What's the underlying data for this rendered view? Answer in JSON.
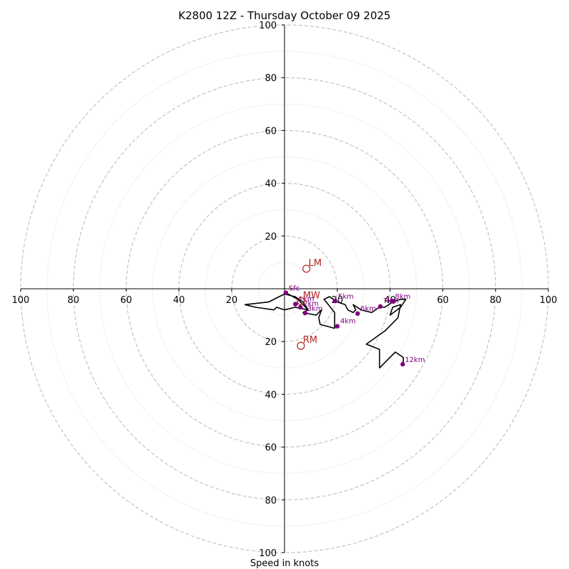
{
  "chart_data": {
    "type": "hodograph",
    "title": "K2800 12Z - Thursday October 09 2025",
    "xlabel": "Speed in knots",
    "units": "knots",
    "range": [
      -100,
      100
    ],
    "ring_major": [
      20,
      40,
      60,
      80,
      100
    ],
    "ring_minor": [
      10,
      30,
      50,
      70,
      90
    ],
    "tick_labels": {
      "x_left": [
        "100",
        "80",
        "60",
        "40",
        "20"
      ],
      "x_right": [
        "20",
        "40",
        "60",
        "80",
        "100"
      ],
      "y_top": [
        "100",
        "80",
        "60",
        "40",
        "20"
      ],
      "y_bottom": [
        "20",
        "40",
        "60",
        "80",
        "100"
      ]
    },
    "ticks": {
      "x_left": [
        -100,
        -80,
        -60,
        -40,
        -20
      ],
      "x_right": [
        20,
        40,
        60,
        80,
        100
      ],
      "y_top": [
        100,
        80,
        60,
        40,
        20
      ],
      "y_bottom": [
        -20,
        -40,
        -60,
        -80,
        -100
      ]
    },
    "trace": [
      [
        0.5,
        -1.5
      ],
      [
        5,
        -4
      ],
      [
        7,
        -6
      ],
      [
        9,
        -8
      ],
      [
        4,
        -7
      ],
      [
        0,
        -8
      ],
      [
        -3,
        -7
      ],
      [
        -4,
        -8
      ],
      [
        -11,
        -7
      ],
      [
        -15,
        -6
      ],
      [
        -6,
        -5
      ],
      [
        0,
        -2
      ],
      [
        4,
        -3
      ],
      [
        7,
        -5
      ],
      [
        9,
        -8
      ],
      [
        7,
        -9
      ],
      [
        12,
        -10
      ],
      [
        14,
        -8
      ],
      [
        13,
        -11
      ],
      [
        13.5,
        -13.5
      ],
      [
        19,
        -15
      ],
      [
        19,
        -9
      ],
      [
        15,
        -4
      ],
      [
        17,
        -3
      ],
      [
        20,
        -5
      ],
      [
        23,
        -6
      ],
      [
        24,
        -8
      ],
      [
        26,
        -9
      ],
      [
        27,
        -8
      ],
      [
        26,
        -6
      ],
      [
        29,
        -8
      ],
      [
        33,
        -9
      ],
      [
        36,
        -7
      ],
      [
        38,
        -7
      ],
      [
        41,
        -5
      ],
      [
        44,
        -4
      ],
      [
        46,
        -4
      ],
      [
        44,
        -7
      ],
      [
        40,
        -10
      ],
      [
        41,
        -7
      ],
      [
        44,
        -6
      ],
      [
        43,
        -11
      ],
      [
        38,
        -16
      ],
      [
        31,
        -21
      ],
      [
        36,
        -23
      ],
      [
        36,
        -30
      ],
      [
        42,
        -24
      ],
      [
        45,
        -26
      ],
      [
        45,
        -28.5
      ]
    ],
    "height_labels": [
      {
        "label": "Sfc",
        "u": 0.5,
        "v": -1.5,
        "dx": 4,
        "dy": -3
      },
      {
        "label": "1km",
        "u": 4.2,
        "v": -5.8,
        "dx": 4,
        "dy": -4
      },
      {
        "label": "2km",
        "u": 6,
        "v": -7,
        "dx": 4,
        "dy": -2
      },
      {
        "label": "3km",
        "u": 7.8,
        "v": -9.2,
        "dx": 3,
        "dy": -3
      },
      {
        "label": "4km",
        "u": 20,
        "v": -14.2,
        "dx": 4,
        "dy": -4
      },
      {
        "label": "5km",
        "u": 19.2,
        "v": -4.6,
        "dx": 4,
        "dy": -3
      },
      {
        "label": "6km",
        "u": 27.7,
        "v": -9.4,
        "dx": 4,
        "dy": -4
      },
      {
        "label": "7km",
        "u": 36.3,
        "v": -6.7,
        "dx": 4,
        "dy": -5
      },
      {
        "label": "8km",
        "u": 40.8,
        "v": -4.6,
        "dx": 4,
        "dy": -3
      },
      {
        "label": "12km",
        "u": 44.8,
        "v": -28.6,
        "dx": 3,
        "dy": -3
      }
    ],
    "extra_points": [
      [
        4.1,
        -5.8
      ],
      [
        41.2,
        -4.8
      ]
    ],
    "motion_markers": [
      {
        "label": "LM",
        "u": 8.3,
        "v": 7.6
      },
      {
        "label": "MW",
        "u": 6.2,
        "v": -4.7
      },
      {
        "label": "RM",
        "u": 6.2,
        "v": -21.6
      }
    ],
    "colors": {
      "trace": "#000000",
      "height_points": "#800080",
      "motion": "#b22222",
      "grid": "#bdbdbd",
      "axes": "#000000"
    }
  }
}
